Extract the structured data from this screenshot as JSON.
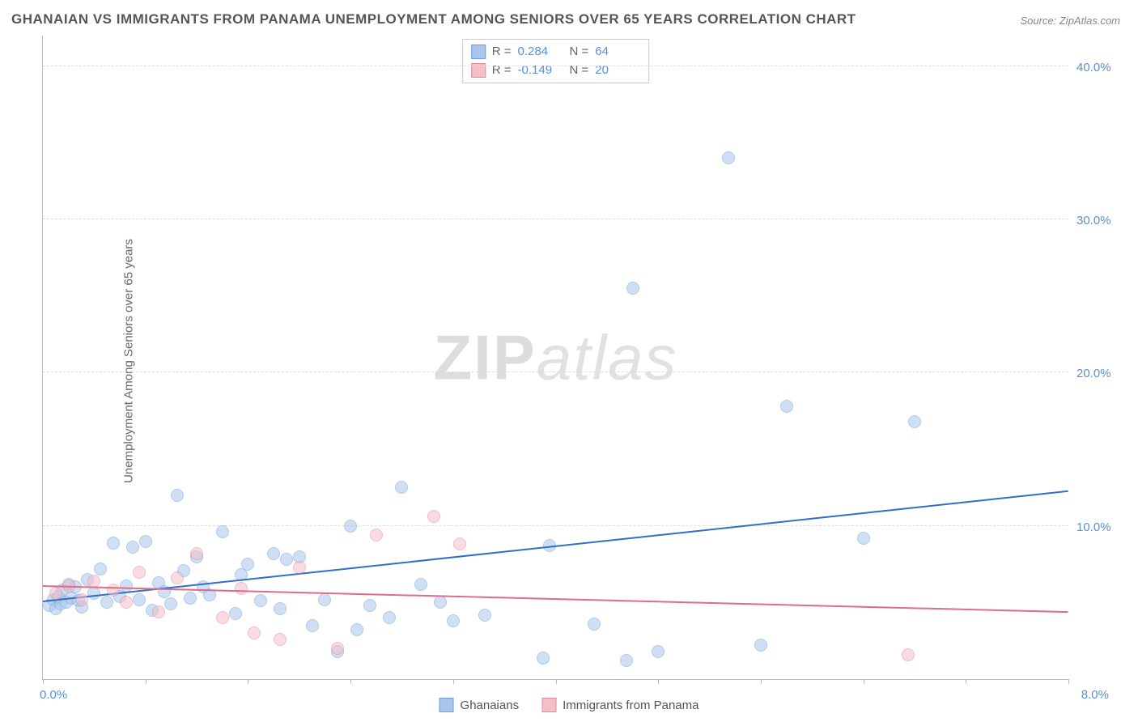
{
  "title": "GHANAIAN VS IMMIGRANTS FROM PANAMA UNEMPLOYMENT AMONG SENIORS OVER 65 YEARS CORRELATION CHART",
  "source": "Source: ZipAtlas.com",
  "ylabel": "Unemployment Among Seniors over 65 years",
  "watermark_a": "ZIP",
  "watermark_b": "atlas",
  "chart": {
    "type": "scatter",
    "background_color": "#ffffff",
    "grid_color": "#dddddd",
    "axis_color": "#bbbbbb",
    "tick_label_color": "#5a8fd6",
    "label_color": "#666666",
    "label_fontsize": 15,
    "title_fontsize": 17,
    "marker_radius": 8,
    "marker_opacity": 0.55,
    "trend_line_width": 2,
    "xlim": [
      0.0,
      8.0
    ],
    "ylim": [
      0.0,
      42.0
    ],
    "x_tick_positions": [
      0.0,
      0.8,
      1.6,
      2.4,
      3.2,
      4.0,
      4.8,
      5.6,
      6.4,
      7.2,
      8.0
    ],
    "x_tick_labels_visible": {
      "first": "0.0%",
      "last": "8.0%"
    },
    "y_gridlines": [
      10.0,
      20.0,
      30.0,
      40.0
    ],
    "y_tick_labels": [
      "10.0%",
      "20.0%",
      "30.0%",
      "40.0%"
    ],
    "stats": [
      {
        "label_r": "R =",
        "r": "0.284",
        "label_n": "N =",
        "n": "64"
      },
      {
        "label_r": "R =",
        "r": "-0.149",
        "label_n": "N =",
        "n": "20"
      }
    ],
    "series": [
      {
        "name": "Ghanaians",
        "fill_color": "#a9c7ec",
        "stroke_color": "#6f9fd8",
        "trend_color": "#2f6fc7",
        "trend": {
          "x1": 0.0,
          "y1": 5.0,
          "x2": 8.0,
          "y2": 12.2
        },
        "points": [
          [
            0.05,
            4.8
          ],
          [
            0.08,
            5.2
          ],
          [
            0.1,
            4.6
          ],
          [
            0.12,
            5.4
          ],
          [
            0.14,
            4.9
          ],
          [
            0.15,
            5.8
          ],
          [
            0.18,
            5.0
          ],
          [
            0.2,
            6.2
          ],
          [
            0.22,
            5.3
          ],
          [
            0.25,
            6.0
          ],
          [
            0.28,
            5.1
          ],
          [
            0.3,
            4.7
          ],
          [
            0.35,
            6.5
          ],
          [
            0.4,
            5.6
          ],
          [
            0.45,
            7.2
          ],
          [
            0.5,
            5.0
          ],
          [
            0.55,
            8.9
          ],
          [
            0.6,
            5.4
          ],
          [
            0.65,
            6.1
          ],
          [
            0.7,
            8.6
          ],
          [
            0.75,
            5.2
          ],
          [
            0.8,
            9.0
          ],
          [
            0.85,
            4.5
          ],
          [
            0.9,
            6.3
          ],
          [
            0.95,
            5.7
          ],
          [
            1.0,
            4.9
          ],
          [
            1.05,
            12.0
          ],
          [
            1.1,
            7.1
          ],
          [
            1.15,
            5.3
          ],
          [
            1.2,
            8.0
          ],
          [
            1.25,
            6.0
          ],
          [
            1.3,
            5.5
          ],
          [
            1.4,
            9.6
          ],
          [
            1.5,
            4.3
          ],
          [
            1.55,
            6.8
          ],
          [
            1.6,
            7.5
          ],
          [
            1.7,
            5.1
          ],
          [
            1.8,
            8.2
          ],
          [
            1.85,
            4.6
          ],
          [
            1.9,
            7.8
          ],
          [
            2.0,
            8.0
          ],
          [
            2.1,
            3.5
          ],
          [
            2.2,
            5.2
          ],
          [
            2.3,
            1.8
          ],
          [
            2.4,
            10.0
          ],
          [
            2.45,
            3.2
          ],
          [
            2.55,
            4.8
          ],
          [
            2.7,
            4.0
          ],
          [
            2.8,
            12.5
          ],
          [
            2.95,
            6.2
          ],
          [
            3.1,
            5.0
          ],
          [
            3.2,
            3.8
          ],
          [
            3.45,
            4.2
          ],
          [
            3.9,
            1.4
          ],
          [
            3.95,
            8.7
          ],
          [
            4.3,
            3.6
          ],
          [
            4.55,
            1.2
          ],
          [
            4.6,
            25.5
          ],
          [
            4.8,
            1.8
          ],
          [
            5.35,
            34.0
          ],
          [
            5.6,
            2.2
          ],
          [
            5.8,
            17.8
          ],
          [
            6.8,
            16.8
          ],
          [
            6.4,
            9.2
          ]
        ]
      },
      {
        "name": "Immigrants from Panama",
        "fill_color": "#f5bfca",
        "stroke_color": "#e08aa0",
        "trend_color": "#e06b8b",
        "trend": {
          "x1": 0.0,
          "y1": 6.0,
          "x2": 8.0,
          "y2": 4.3
        },
        "points": [
          [
            0.1,
            5.6
          ],
          [
            0.2,
            6.1
          ],
          [
            0.3,
            5.2
          ],
          [
            0.4,
            6.4
          ],
          [
            0.55,
            5.8
          ],
          [
            0.65,
            5.0
          ],
          [
            0.75,
            7.0
          ],
          [
            0.9,
            4.4
          ],
          [
            1.05,
            6.6
          ],
          [
            1.2,
            8.2
          ],
          [
            1.4,
            4.0
          ],
          [
            1.55,
            5.9
          ],
          [
            1.65,
            3.0
          ],
          [
            1.85,
            2.6
          ],
          [
            2.0,
            7.3
          ],
          [
            2.3,
            2.0
          ],
          [
            2.6,
            9.4
          ],
          [
            3.05,
            10.6
          ],
          [
            3.25,
            8.8
          ],
          [
            6.75,
            1.6
          ]
        ]
      }
    ],
    "legend": [
      {
        "swatch_fill": "#a9c7ec",
        "swatch_stroke": "#6f9fd8",
        "label": "Ghanaians"
      },
      {
        "swatch_fill": "#f5bfca",
        "swatch_stroke": "#e08aa0",
        "label": "Immigrants from Panama"
      }
    ]
  }
}
